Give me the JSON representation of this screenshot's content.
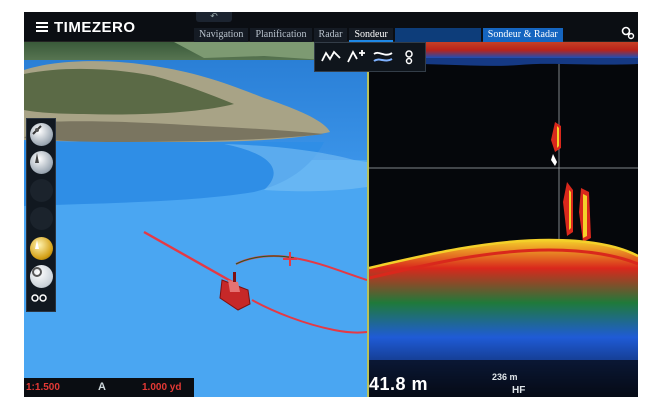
{
  "app": {
    "brand": "TIMEZERO",
    "undo_label": "↶"
  },
  "tabs": [
    {
      "label": "Navigation",
      "active": false
    },
    {
      "label": "Planification",
      "active": false
    },
    {
      "label": "Radar",
      "active": false
    },
    {
      "label": "Sondeur",
      "active": true
    },
    {
      "label": "",
      "active": false
    },
    {
      "label": "Sondeur & Radar",
      "active": false
    }
  ],
  "left_pane": {
    "status": {
      "scale": "1:1.500",
      "north_symbol": "A",
      "distance": "1.000 yd"
    },
    "tools": [
      "compass-icon",
      "tilt-icon",
      "blank-tool",
      "blank-tool",
      "lighthouse-icon",
      "ring-icon",
      "settings-icon"
    ]
  },
  "sounder_pane": {
    "toolbar_icons": [
      "sounder-mode-icon",
      "zoom-mode-icon",
      "bottom-lock-icon",
      "sounder-settings-icon"
    ],
    "depth": "41.8 m",
    "range": "236 m",
    "frequency": "HF",
    "tick_labels": [
      "",
      "",
      "",
      ""
    ]
  },
  "colors": {
    "sea": "#4aa6f2",
    "route": "#e53945",
    "sounder_bg": "#05070b",
    "bottom_red": "#d9281c",
    "bottom_yellow": "#f2d024",
    "bottom_blue": "#1f5bd6",
    "accent_tab": "#1565c0"
  }
}
